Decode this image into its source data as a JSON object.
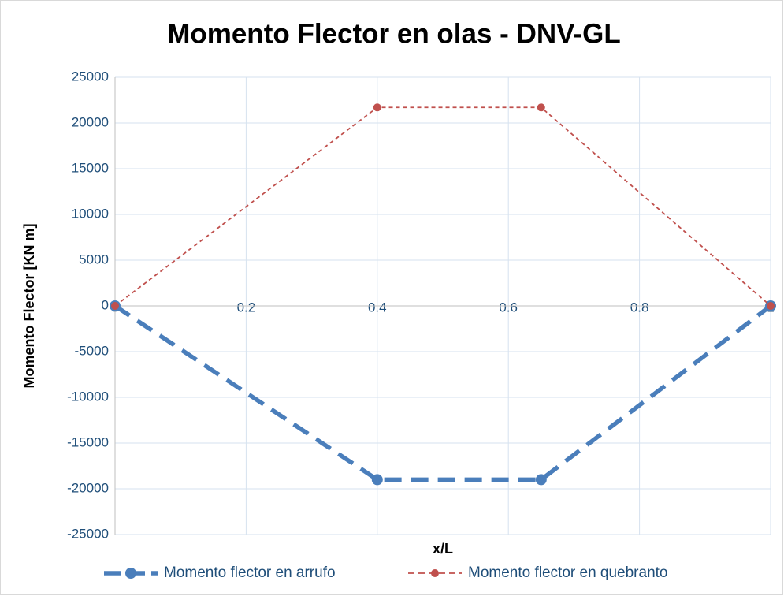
{
  "chart_data": {
    "type": "line",
    "title": "Momento Flector en olas - DNV-GL",
    "xlabel": "x/L",
    "ylabel": "Momento Flector [KN m]",
    "x": [
      0,
      0.4,
      0.65,
      1
    ],
    "series": [
      {
        "name": "Momento flector en arrufo",
        "color": "#4a7ebb",
        "values": [
          0,
          -19000,
          -19000,
          0
        ]
      },
      {
        "name": "Momento flector en quebranto",
        "color": "#c0504d",
        "values": [
          0,
          21700,
          21700,
          0
        ]
      }
    ],
    "xlim": [
      0,
      1
    ],
    "xticks": [
      0,
      0.2,
      0.4,
      0.6,
      0.8,
      1
    ],
    "ylim": [
      -25000,
      25000
    ],
    "yticks": [
      -25000,
      -20000,
      -15000,
      -10000,
      -5000,
      0,
      5000,
      10000,
      15000,
      20000,
      25000
    ],
    "grid": true,
    "legend": "bottom"
  }
}
